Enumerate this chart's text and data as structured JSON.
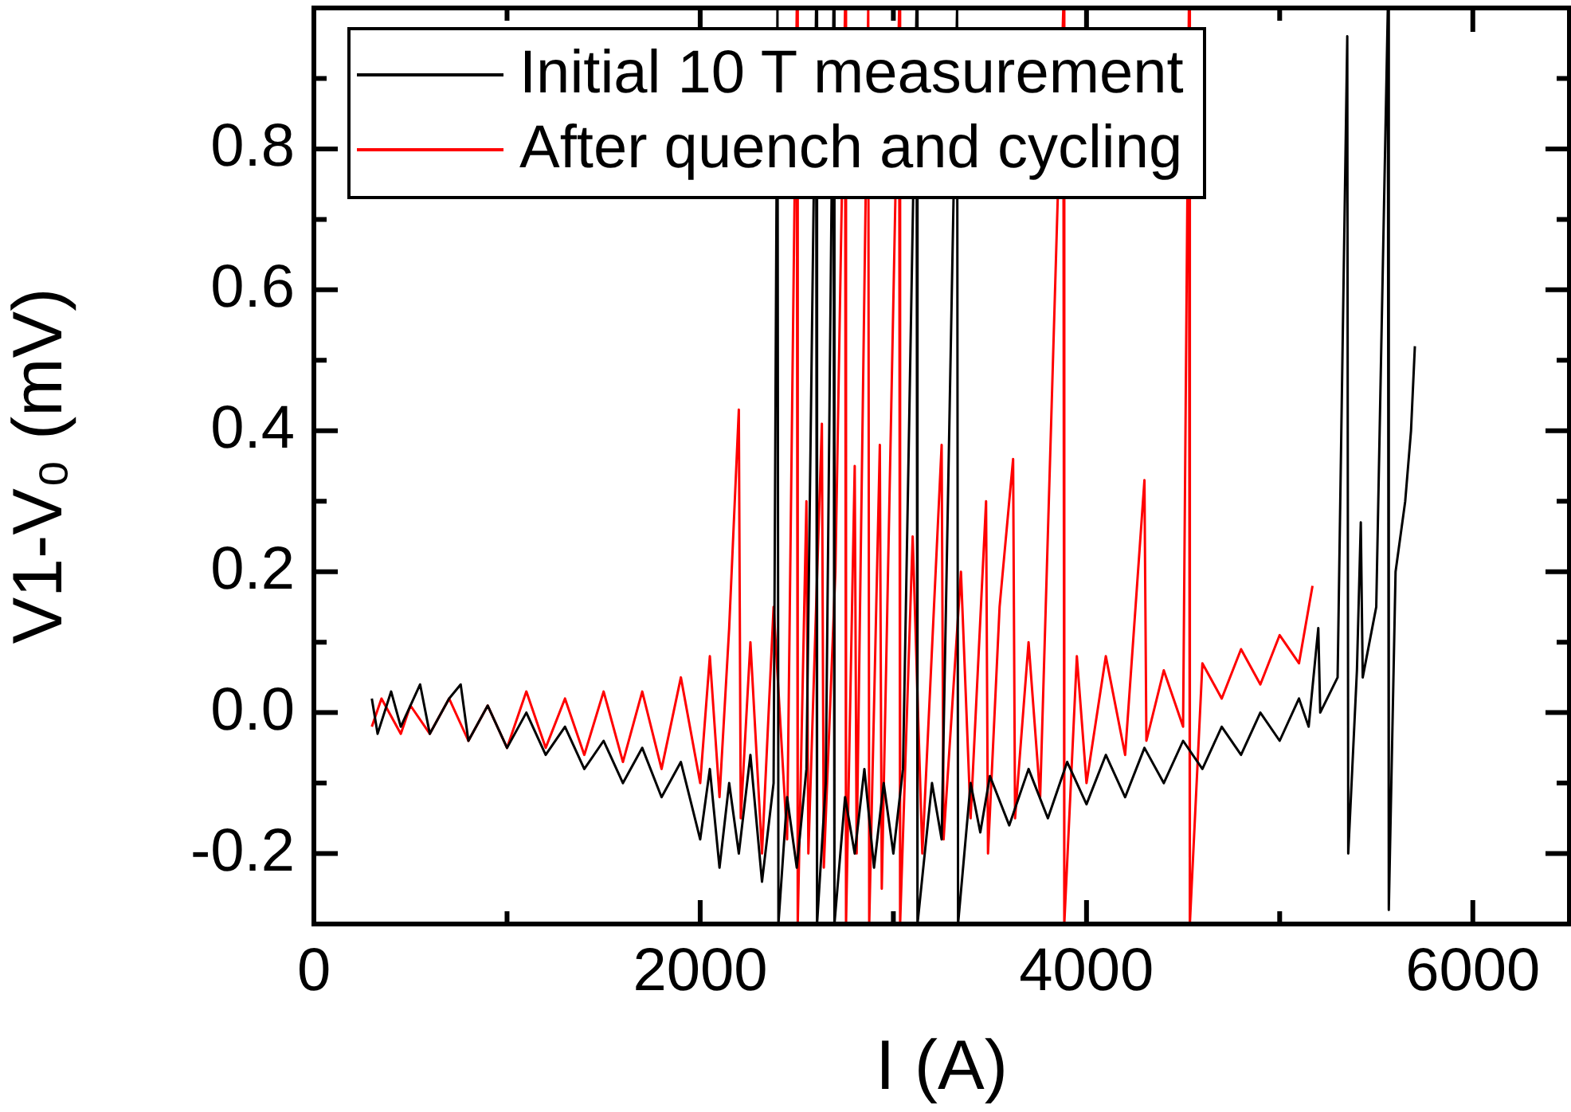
{
  "chart_data": {
    "type": "line",
    "xlabel": "I (A)",
    "ylabel": "V1-V₀ (mV)",
    "xlim": [
      0,
      6500
    ],
    "xticks": [
      0,
      {
        "value": 1000,
        "label": null
      },
      2000,
      {
        "value": 3000,
        "label": null
      },
      4000,
      {
        "value": 5000,
        "label": null
      },
      6000
    ],
    "ylim": [
      -0.3,
      1.0
    ],
    "yticks": [
      {
        "value": -0.3,
        "label": null
      },
      -0.2,
      {
        "value": -0.1,
        "label": null
      },
      {
        "value": 0,
        "label": "0.0"
      },
      {
        "value": 0.1,
        "label": null
      },
      0.2,
      {
        "value": 0.3,
        "label": null
      },
      0.4,
      {
        "value": 0.5,
        "label": null
      },
      0.6,
      {
        "value": 0.7,
        "label": null
      },
      0.8,
      {
        "value": 0.9,
        "label": null
      }
    ],
    "grid": false,
    "legend": "top left",
    "marker": "none",
    "line_style": "solid",
    "series": [
      {
        "name": "Initial 10 T measurement",
        "color": "#000000",
        "x": [
          300,
          330,
          400,
          450,
          550,
          600,
          700,
          760,
          800,
          900,
          1000,
          1100,
          1200,
          1300,
          1400,
          1500,
          1600,
          1700,
          1800,
          1900,
          2000,
          2050,
          2100,
          2150,
          2200,
          2260,
          2320,
          2380,
          2400,
          2405,
          2450,
          2500,
          2550,
          2600,
          2605,
          2650,
          2690,
          2695,
          2750,
          2800,
          2850,
          2900,
          2950,
          3000,
          3050,
          3120,
          3125,
          3200,
          3250,
          3330,
          3335,
          3400,
          3450,
          3500,
          3600,
          3700,
          3800,
          3900,
          4000,
          4100,
          4200,
          4300,
          4400,
          4500,
          4600,
          4700,
          4800,
          4900,
          5000,
          5100,
          5150,
          5200,
          5210,
          5300,
          5350,
          5355,
          5400,
          5420,
          5430,
          5500,
          5560,
          5565,
          5600,
          5650,
          5680,
          5700
        ],
        "values": [
          0.02,
          -0.03,
          0.03,
          -0.02,
          0.04,
          -0.03,
          0.02,
          0.04,
          -0.04,
          0.01,
          -0.05,
          0.0,
          -0.06,
          -0.02,
          -0.08,
          -0.04,
          -0.1,
          -0.05,
          -0.12,
          -0.07,
          -0.18,
          -0.08,
          -0.22,
          -0.1,
          -0.2,
          -0.06,
          -0.24,
          -0.1,
          1.0,
          -0.3,
          -0.12,
          -0.22,
          -0.08,
          1.0,
          -0.3,
          -0.1,
          1.0,
          -0.3,
          -0.12,
          -0.2,
          -0.08,
          -0.22,
          -0.1,
          -0.2,
          -0.08,
          1.0,
          -0.3,
          -0.1,
          -0.18,
          1.0,
          -0.3,
          -0.1,
          -0.17,
          -0.09,
          -0.16,
          -0.08,
          -0.15,
          -0.07,
          -0.13,
          -0.06,
          -0.12,
          -0.05,
          -0.1,
          -0.04,
          -0.08,
          -0.02,
          -0.06,
          0.0,
          -0.04,
          0.02,
          -0.02,
          0.12,
          0.0,
          0.05,
          0.96,
          -0.2,
          0.06,
          0.27,
          0.05,
          0.15,
          1.0,
          -0.28,
          0.2,
          0.3,
          0.4,
          0.52
        ]
      },
      {
        "name": "After quench and cycling",
        "color": "#ff0000",
        "x": [
          300,
          350,
          450,
          500,
          600,
          700,
          800,
          900,
          1000,
          1100,
          1200,
          1300,
          1400,
          1500,
          1600,
          1700,
          1800,
          1900,
          2000,
          2050,
          2100,
          2150,
          2200,
          2210,
          2260,
          2320,
          2380,
          2450,
          2500,
          2505,
          2550,
          2560,
          2630,
          2640,
          2700,
          2750,
          2755,
          2800,
          2810,
          2870,
          2875,
          2930,
          2940,
          3030,
          3035,
          3100,
          3150,
          3250,
          3260,
          3350,
          3400,
          3480,
          3490,
          3550,
          3620,
          3630,
          3700,
          3760,
          3880,
          3885,
          3950,
          4000,
          4100,
          4200,
          4300,
          4310,
          4400,
          4500,
          4530,
          4535,
          4600,
          4700,
          4800,
          4900,
          5000,
          5100,
          5170
        ],
        "values": [
          -0.02,
          0.02,
          -0.03,
          0.01,
          -0.03,
          0.02,
          -0.04,
          0.01,
          -0.05,
          0.03,
          -0.05,
          0.02,
          -0.06,
          0.03,
          -0.07,
          0.03,
          -0.08,
          0.05,
          -0.1,
          0.08,
          -0.12,
          0.12,
          0.43,
          -0.15,
          0.1,
          -0.2,
          0.15,
          -0.18,
          1.0,
          -0.3,
          0.3,
          -0.2,
          0.41,
          -0.22,
          0.2,
          1.0,
          -0.3,
          0.35,
          -0.2,
          1.0,
          -0.3,
          0.38,
          -0.25,
          1.0,
          -0.3,
          0.25,
          -0.2,
          0.38,
          -0.18,
          0.2,
          -0.15,
          0.3,
          -0.2,
          0.15,
          0.36,
          -0.15,
          0.1,
          -0.12,
          1.0,
          -0.3,
          0.08,
          -0.1,
          0.08,
          -0.06,
          0.33,
          -0.04,
          0.06,
          -0.02,
          1.0,
          -0.3,
          0.07,
          0.02,
          0.09,
          0.04,
          0.11,
          0.07,
          0.18
        ]
      }
    ]
  }
}
